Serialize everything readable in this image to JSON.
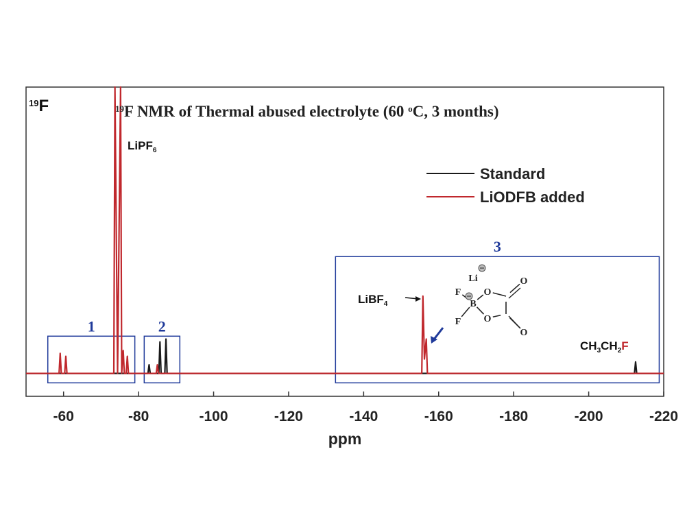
{
  "chart_data": {
    "type": "line",
    "title": {
      "parts": [
        "19",
        "F NMR of Thermal abused electrolyte (60 ",
        "o",
        "C, 3 months)"
      ]
    },
    "nucleus_label": {
      "parts": [
        "19",
        "F"
      ]
    },
    "xlabel": "ppm",
    "xlim": [
      -50,
      -220
    ],
    "xticks": [
      -60,
      -80,
      -100,
      -120,
      -140,
      -160,
      -180,
      -200,
      -220
    ],
    "ylim": [
      -8,
      100
    ],
    "legend": "upper right",
    "series": [
      {
        "name": "Standard",
        "color": "#1a1a1a",
        "x": [
          -50,
          -82.5,
          -82.8,
          -83.1,
          -85.4,
          -85.7,
          -86,
          -87,
          -87.3,
          -87.6,
          -212.2,
          -212.5,
          -212.8,
          -220
        ],
        "values": [
          0,
          0,
          3,
          0,
          0,
          11,
          0,
          0,
          12,
          0,
          0,
          4,
          0,
          0
        ]
      },
      {
        "name": "LiODFB added",
        "color": "#c0282d",
        "x": [
          -50,
          -58.8,
          -59.1,
          -59.4,
          -60.3,
          -60.6,
          -60.9,
          -73.4,
          -73.7,
          -74.4,
          -75.2,
          -75.5,
          -75.9,
          -76.2,
          -76.7,
          -77,
          -77.3,
          -84.7,
          -85,
          -85.3,
          -155.5,
          -155.8,
          -156.2,
          -156.7,
          -157,
          -220
        ],
        "values": [
          0,
          0,
          7,
          0,
          0,
          6,
          0,
          0,
          100,
          0,
          100,
          0,
          8,
          0,
          0,
          6,
          0,
          0,
          3,
          0,
          0,
          27,
          5,
          12,
          0,
          0
        ]
      }
    ],
    "annotations": [
      {
        "parts": [
          "LiPF",
          "6"
        ]
      },
      {
        "parts": [
          "LiBF",
          "4"
        ]
      },
      {
        "parts": [
          "CH",
          "3",
          "CH",
          "2",
          "F"
        ]
      }
    ],
    "regions": [
      {
        "label": "1",
        "xrange": [
          -55.8,
          -79
        ],
        "yrange": [
          -3.3,
          13
        ]
      },
      {
        "label": "2",
        "xrange": [
          -81.5,
          -91
        ],
        "yrange": [
          -3.3,
          13
        ]
      },
      {
        "label": "3",
        "xrange": [
          -132.5,
          -218.8
        ],
        "yrange": [
          -3.3,
          40.8
        ]
      }
    ],
    "structure_labels": [
      "Li",
      "F",
      "F",
      "B",
      "O",
      "O",
      "O",
      "O"
    ]
  }
}
